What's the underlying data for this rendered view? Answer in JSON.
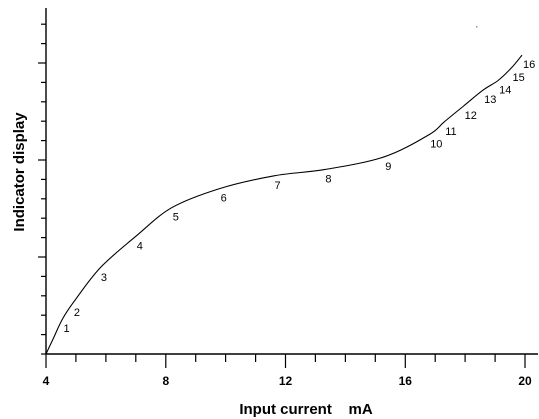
{
  "chart_data": {
    "type": "line",
    "xlabel": "Input current    mA",
    "ylabel": "Indicator display",
    "xlim": [
      4,
      20
    ],
    "ylim": [
      0,
      100
    ],
    "x_ticks": [
      "4",
      "8",
      "12",
      "16",
      "20"
    ],
    "y_tick_labels_shown": false,
    "grid": false,
    "series": [
      {
        "x": [
          4.0,
          4.25,
          4.55,
          4.9,
          5.8,
          7.0,
          8.2,
          9.8,
          11.6,
          13.3,
          15.3,
          16.8,
          17.3,
          17.95,
          18.6,
          19.1,
          19.55,
          19.9
        ],
        "y": [
          0,
          5,
          11,
          16,
          27,
          37,
          46,
          52,
          56,
          58,
          62,
          69,
          73,
          78,
          83,
          86,
          90,
          94
        ]
      }
    ],
    "annotations": [
      {
        "text": "1",
        "x": 4.55,
        "y": 11
      },
      {
        "text": "2",
        "x": 4.9,
        "y": 16
      },
      {
        "text": "3",
        "x": 5.8,
        "y": 27
      },
      {
        "text": "4",
        "x": 7.0,
        "y": 37
      },
      {
        "text": "5",
        "x": 8.2,
        "y": 46
      },
      {
        "text": "6",
        "x": 9.8,
        "y": 52
      },
      {
        "text": "7",
        "x": 11.6,
        "y": 56
      },
      {
        "text": "8",
        "x": 13.3,
        "y": 58
      },
      {
        "text": "9",
        "x": 15.3,
        "y": 62
      },
      {
        "text": "10",
        "x": 16.8,
        "y": 69
      },
      {
        "text": "11",
        "x": 17.3,
        "y": 73
      },
      {
        "text": "12",
        "x": 17.95,
        "y": 78
      },
      {
        "text": "13",
        "x": 18.6,
        "y": 83
      },
      {
        "text": "14",
        "x": 19.1,
        "y": 86
      },
      {
        "text": "15",
        "x": 19.55,
        "y": 90
      },
      {
        "text": "16",
        "x": 19.9,
        "y": 94
      }
    ]
  }
}
